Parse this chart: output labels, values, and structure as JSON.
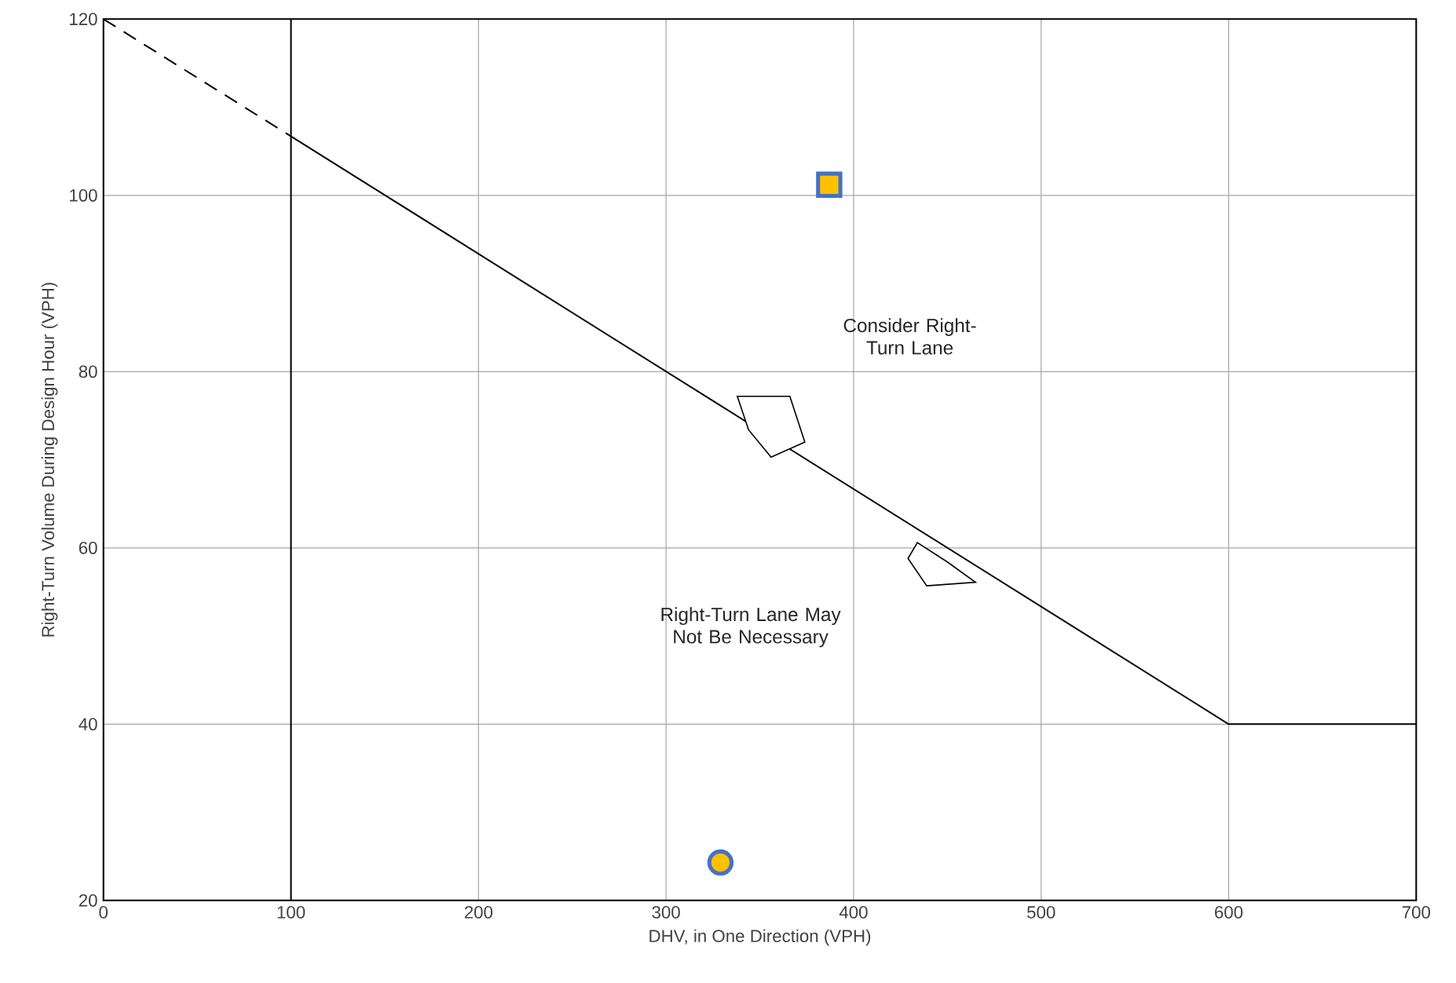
{
  "chart_data": {
    "type": "line",
    "xlabel": "DHV, in One Direction (VPH)",
    "ylabel": "Right-Turn Volume During Design Hour (VPH)",
    "xlim": [
      0,
      700
    ],
    "ylim": [
      20,
      120
    ],
    "xticks": [
      0,
      100,
      200,
      300,
      400,
      500,
      600,
      700
    ],
    "yticks": [
      20,
      40,
      60,
      80,
      100,
      120
    ],
    "grid": true,
    "series": [
      {
        "color": "#000000",
        "line_style": "dashed",
        "x": [
          0,
          100
        ],
        "values": [
          120,
          106.7
        ]
      },
      {
        "color": "#000000",
        "line_style": "solid",
        "x": [
          100,
          600,
          700
        ],
        "values": [
          106.7,
          40,
          40
        ]
      },
      {
        "type": "scatter",
        "color": "#ffc000",
        "marker": "square",
        "x": [
          387
        ],
        "values": [
          101.2
        ]
      },
      {
        "type": "scatter",
        "color": "#ffc000",
        "marker": "circle",
        "x": [
          329
        ],
        "values": [
          24.3
        ]
      }
    ],
    "ref_lines": [
      {
        "axis": "x",
        "value": 100,
        "color": "#000000"
      }
    ],
    "annotations": [
      "Consider Right-Turn Lane",
      "Right-Turn Lane May Not Be Necessary"
    ]
  }
}
